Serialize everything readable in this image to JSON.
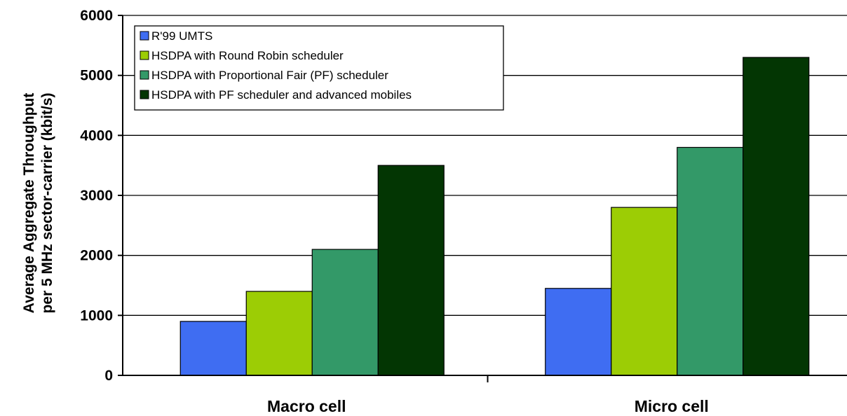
{
  "chart_data": {
    "type": "bar",
    "title": "",
    "xlabel": "",
    "ylabel": [
      "Average Aggregate Throughput",
      "per 5 MHz sector-carrier (kbit/s)"
    ],
    "categories": [
      "Macro cell",
      "Micro cell"
    ],
    "ylim": [
      0,
      6000
    ],
    "yticks": [
      "0",
      "1000",
      "2000",
      "3000",
      "4000",
      "5000",
      "6000"
    ],
    "grid": true,
    "legend_position": "top-left",
    "series": [
      {
        "name": "R'99 UMTS",
        "color": "#3f6df2",
        "values": [
          900,
          1450
        ]
      },
      {
        "name": "HSDPA with Round Robin scheduler",
        "color": "#9ccd05",
        "values": [
          1400,
          2800
        ]
      },
      {
        "name": "HSDPA with Proportional Fair (PF) scheduler",
        "color": "#339968",
        "values": [
          2100,
          3800
        ]
      },
      {
        "name": "HSDPA with PF scheduler and advanced mobiles",
        "color": "#033603",
        "values": [
          3500,
          5300
        ]
      }
    ]
  }
}
